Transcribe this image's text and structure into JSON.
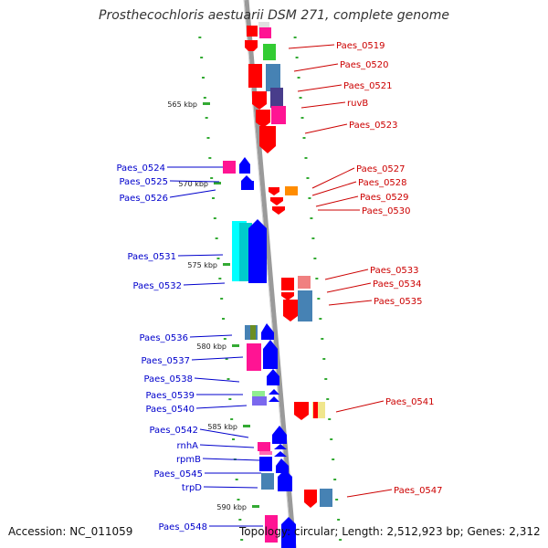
{
  "title": "Prosthecochloris aestuarii DSM 271, complete genome",
  "accession": "Accession: NC_011059",
  "topology": "Topology: circular; Length: 2,512,923 bp; Genes: 2,312",
  "colors": {
    "backbone": "#9a9a9a",
    "label_left": "#0000cc",
    "label_right": "#cc0000",
    "tick": "#33aa33",
    "tick_label": "#222222"
  },
  "ticks": [
    "565 kbp",
    "570 kbp",
    "575 kbp",
    "580 kbp",
    "585 kbp",
    "590 kbp"
  ],
  "left_labels": [
    "Paes_0524",
    "Paes_0525",
    "Paes_0526",
    "Paes_0531",
    "Paes_0532",
    "Paes_0536",
    "Paes_0537",
    "Paes_0538",
    "Paes_0539",
    "Paes_0540",
    "Paes_0542",
    "rnhA",
    "rpmB",
    "Paes_0545",
    "trpD",
    "Paes_0548"
  ],
  "right_labels": [
    "Paes_0519",
    "Paes_0520",
    "Paes_0521",
    "ruvB",
    "Paes_0523",
    "Paes_0527",
    "Paes_0528",
    "Paes_0529",
    "Paes_0530",
    "Paes_0533",
    "Paes_0534",
    "Paes_0535",
    "Paes_0541",
    "Paes_0547"
  ]
}
